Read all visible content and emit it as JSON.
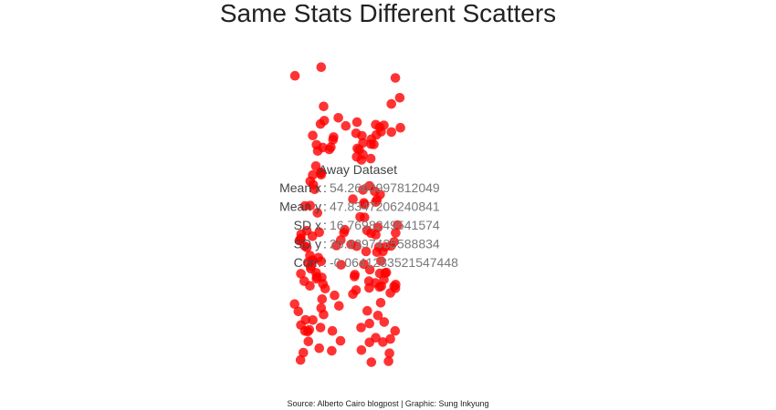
{
  "chart_data": {
    "type": "scatter",
    "title": "Same Stats Different Scatters",
    "caption": "Source: Alberto Cairo blogpost | Graphic: Sung Inkyung",
    "xlabel": "",
    "ylabel": "",
    "grid": false,
    "xlim": [
      15.5,
      91.6
    ],
    "ylim": [
      0.0,
      97.8
    ],
    "point_color": "#ff0000",
    "stats": {
      "dataset_label": "Away Dataset",
      "labels": [
        "Mean x",
        "Mean y",
        "SD x",
        "SD y",
        "Corr."
      ],
      "values": [
        "54.2660997812049",
        "47.8347206240841",
        "16.7698249541574",
        "26.9397435588834",
        "-0.0641283521547448"
      ]
    },
    "series": [
      {
        "x": [
          32.5,
          41.7,
          40.7,
          38.2,
          39.8,
          38.4,
          39.7,
          35.7,
          34.4,
          40.3,
          38.1,
          40.9,
          32.4,
          39.4,
          33.6,
          38.2,
          34.3,
          41.7,
          44.5,
          44.3,
          42.2,
          47.1,
          46.6,
          47.3,
          50.5,
          48.2,
          51.6,
          52.1,
          51.1,
          55.7,
          56.4,
          53.7,
          56.4,
          53.8,
          57.0,
          58.3,
          61.8,
          60.1,
          58.8,
          60.7,
          59.1,
          61.5,
          63.1,
          60.0,
          61.1,
          59.1,
          64.7,
          61.4,
          60.7,
          63.1,
          62.8,
          62.5,
          64.6,
          64.3,
          64.8,
          64.3,
          64.8,
          63.3,
          65.4,
          59.8,
          58.8,
          58.1,
          56.8,
          54.3,
          53.8,
          57.0,
          58.6,
          60.1,
          58.4,
          54.0,
          52.1,
          54.3,
          52.5,
          56.9,
          53.1,
          52.3,
          57.8,
          59.7,
          61.0,
          63.4,
          66.1,
          64.7,
          66.3,
          63.4,
          58.4,
          54.6,
          54.8,
          54.3,
          51.1,
          48.5,
          47.2,
          45.8,
          48.8,
          44.7,
          46.4,
          44.9,
          41.9,
          44.0,
          41.4,
          39.4,
          40.7,
          40.9,
          38.2,
          37.4,
          40.8,
          43.5,
          39.2,
          40.9,
          38.8,
          37.4,
          40.0,
          36.7,
          39.5,
          35.5,
          37.6,
          38.1,
          35.6,
          36.3,
          33.9,
          34.5,
          34.3,
          36.3,
          37.3,
          38.2,
          34.4,
          37.5,
          39.3,
          37.3,
          41.1,
          41.2,
          35.2,
          35.9,
          36.6,
          40.9,
          41.5,
          45.2,
          40.7,
          37.1,
          35.7,
          40.3,
          36.8,
          34.4,
          51.7,
          56.2,
          60.2,
          61.0,
          59.7,
          56.5,
          54.6,
          52.3,
          55.3,
          59.4,
          58.4,
          56.9,
          53.4,
          59.6,
          56.3,
          54.8,
          52.4,
          56.4,
          55.6,
          58.4
        ],
        "y": [
          95.1,
          85.2,
          79.5,
          75.8,
          70.8,
          59.9,
          50.8,
          53.0,
          42.5,
          44.5,
          43.2,
          35.1,
          21.3,
          29.5,
          18.9,
          16.1,
          3.2,
          17.9,
          12.6,
          6.2,
          26.3,
          9.4,
          20.7,
          34.0,
          40.6,
          44.4,
          30.2,
          25.8,
          24.5,
          19.1,
          15.0,
          13.7,
          8.9,
          6.4,
          2.5,
          28.1,
          31.5,
          35.2,
          38.1,
          38.3,
          46.1,
          39.8,
          24.9,
          21.7,
          15.5,
          17.6,
          26.4,
          31.3,
          9.0,
          10.0,
          5.4,
          2.8,
          12.6,
          27.0,
          27.6,
          41.4,
          44.3,
          40.1,
          46.8,
          56.7,
          55.0,
          57.7,
          68.3,
          69.6,
          67.9,
          74.6,
          76.0,
          77.0,
          79.3,
          75.7,
          76.5,
          73.4,
          71.6,
          73.0,
          71.2,
          68.9,
          72.9,
          78.5,
          79.1,
          86.0,
          88.0,
          94.4,
          78.3,
          76.9,
          54.3,
          54.0,
          49.3,
          58.2,
          55.2,
          45.3,
          42.0,
          40.2,
          78.9,
          74.4,
          81.5,
          75.3,
          80.6,
          72.0,
          71.9,
          72.8,
          63.6,
          63.1,
          63.0,
          61.0,
          63.9,
          71.3,
          65.9,
          97.9,
          58.4,
          53.1,
          36.3,
          34.8,
          30.1,
          28.7,
          32.7,
          35.5,
          40.1,
          45.0,
          41.8,
          43.9,
          42.3,
          39.6,
          37.0,
          35.4,
          31.1,
          33.5,
          31.4,
          27.2,
          29.9,
          22.9,
          5.6,
          16.2,
          12.4,
          20.0,
          27.8,
          24.1,
          13.7,
          13.0,
          12.6,
          7.0,
          9.2,
          14.5,
          30.8,
          28.7,
          27.1,
          29.2,
          31.2,
          32.4,
          34.2,
          40.0,
          38.3,
          39.7,
          43.7,
          44.2,
          49.5,
          26.8,
          26.5,
          53.5,
          80.1,
          59.5,
          45.1,
          10.4
        ]
      }
    ]
  }
}
